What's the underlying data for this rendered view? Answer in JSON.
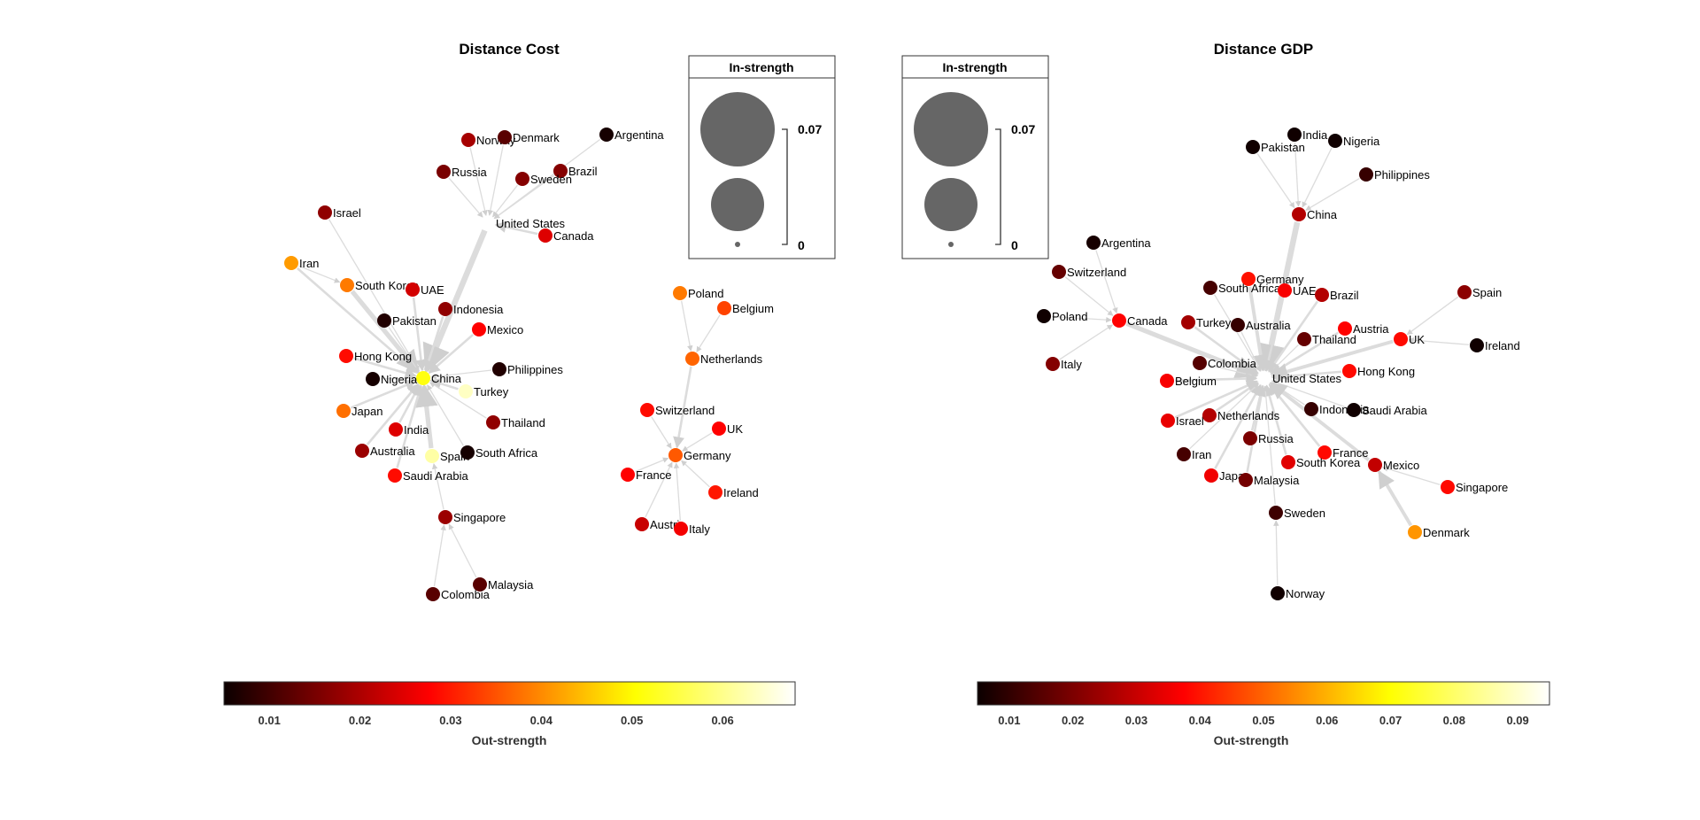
{
  "colors": {
    "edge": "#dcdcdc",
    "legend_circle": "#666666",
    "colormap": "hot"
  },
  "panels": [
    {
      "id": "cost",
      "title": "Distance Cost",
      "colorbar": {
        "label": "Out-strength",
        "min": 0.005,
        "max": 0.068,
        "ticks": [
          0.01,
          0.02,
          0.03,
          0.04,
          0.05,
          0.06
        ]
      },
      "legend": {
        "title": "In-strength",
        "max_label": "0.07",
        "min_label": "0"
      },
      "nodes": [
        {
          "label": "China",
          "out": 0.052
        },
        {
          "label": "United States",
          "out": 0.068
        },
        {
          "label": "Norway",
          "out": 0.02
        },
        {
          "label": "Denmark",
          "out": 0.013
        },
        {
          "label": "Argentina",
          "out": 0.007
        },
        {
          "label": "Russia",
          "out": 0.016
        },
        {
          "label": "Brazil",
          "out": 0.017
        },
        {
          "label": "Sweden",
          "out": 0.017
        },
        {
          "label": "Canada",
          "out": 0.025
        },
        {
          "label": "Israel",
          "out": 0.018
        },
        {
          "label": "Iran",
          "out": 0.042
        },
        {
          "label": "South Korea",
          "out": 0.039
        },
        {
          "label": "UAE",
          "out": 0.024
        },
        {
          "label": "Indonesia",
          "out": 0.018
        },
        {
          "label": "Pakistan",
          "out": 0.008
        },
        {
          "label": "Mexico",
          "out": 0.028
        },
        {
          "label": "Hong Kong",
          "out": 0.029
        },
        {
          "label": "Nigeria",
          "out": 0.007
        },
        {
          "label": "Philippines",
          "out": 0.008
        },
        {
          "label": "Turkey",
          "out": 0.064
        },
        {
          "label": "Japan",
          "out": 0.038
        },
        {
          "label": "India",
          "out": 0.025
        },
        {
          "label": "Thailand",
          "out": 0.018
        },
        {
          "label": "Australia",
          "out": 0.019
        },
        {
          "label": "Spain",
          "out": 0.062
        },
        {
          "label": "South Africa",
          "out": 0.007
        },
        {
          "label": "Saudi Arabia",
          "out": 0.029
        },
        {
          "label": "Singapore",
          "out": 0.019
        },
        {
          "label": "Malaysia",
          "out": 0.013
        },
        {
          "label": "Colombia",
          "out": 0.013
        },
        {
          "label": "Poland",
          "out": 0.039
        },
        {
          "label": "Belgium",
          "out": 0.034
        },
        {
          "label": "Netherlands",
          "out": 0.037
        },
        {
          "label": "Switzerland",
          "out": 0.029
        },
        {
          "label": "UK",
          "out": 0.028
        },
        {
          "label": "Germany",
          "out": 0.036
        },
        {
          "label": "France",
          "out": 0.028
        },
        {
          "label": "Ireland",
          "out": 0.03
        },
        {
          "label": "Austria",
          "out": 0.023
        },
        {
          "label": "Italy",
          "out": 0.027
        }
      ]
    },
    {
      "id": "gdp",
      "title": "Distance GDP",
      "colorbar": {
        "label": "Out-strength",
        "min": 0.005,
        "max": 0.095,
        "ticks": [
          0.01,
          0.02,
          0.03,
          0.04,
          0.05,
          0.06,
          0.07,
          0.08,
          0.09
        ]
      },
      "legend": {
        "title": "In-strength",
        "max_label": "0.07",
        "min_label": "0"
      },
      "nodes": [
        {
          "label": "United States",
          "out": 0.095
        },
        {
          "label": "India",
          "out": 0.007
        },
        {
          "label": "Nigeria",
          "out": 0.007
        },
        {
          "label": "Pakistan",
          "out": 0.007
        },
        {
          "label": "Philippines",
          "out": 0.012
        },
        {
          "label": "China",
          "out": 0.028
        },
        {
          "label": "Argentina",
          "out": 0.008
        },
        {
          "label": "Switzerland",
          "out": 0.018
        },
        {
          "label": "Poland",
          "out": 0.007
        },
        {
          "label": "Canada",
          "out": 0.038
        },
        {
          "label": "Italy",
          "out": 0.022
        },
        {
          "label": "Germany",
          "out": 0.04
        },
        {
          "label": "South Africa",
          "out": 0.014
        },
        {
          "label": "UAE",
          "out": 0.037
        },
        {
          "label": "Brazil",
          "out": 0.028
        },
        {
          "label": "Turkey",
          "out": 0.026
        },
        {
          "label": "Australia",
          "out": 0.012
        },
        {
          "label": "Thailand",
          "out": 0.018
        },
        {
          "label": "Austria",
          "out": 0.038
        },
        {
          "label": "UK",
          "out": 0.039
        },
        {
          "label": "Spain",
          "out": 0.023
        },
        {
          "label": "Ireland",
          "out": 0.007
        },
        {
          "label": "Colombia",
          "out": 0.016
        },
        {
          "label": "Belgium",
          "out": 0.037
        },
        {
          "label": "Hong Kong",
          "out": 0.039
        },
        {
          "label": "Israel",
          "out": 0.035
        },
        {
          "label": "Netherlands",
          "out": 0.028
        },
        {
          "label": "Indonesia",
          "out": 0.012
        },
        {
          "label": "Saudi Arabia",
          "out": 0.007
        },
        {
          "label": "Iran",
          "out": 0.014
        },
        {
          "label": "Russia",
          "out": 0.021
        },
        {
          "label": "France",
          "out": 0.039
        },
        {
          "label": "Japan",
          "out": 0.036
        },
        {
          "label": "Malaysia",
          "out": 0.02
        },
        {
          "label": "South Korea",
          "out": 0.034
        },
        {
          "label": "Mexico",
          "out": 0.03
        },
        {
          "label": "Singapore",
          "out": 0.039
        },
        {
          "label": "Denmark",
          "out": 0.057
        },
        {
          "label": "Sweden",
          "out": 0.013
        },
        {
          "label": "Norway",
          "out": 0.007
        }
      ]
    }
  ]
}
